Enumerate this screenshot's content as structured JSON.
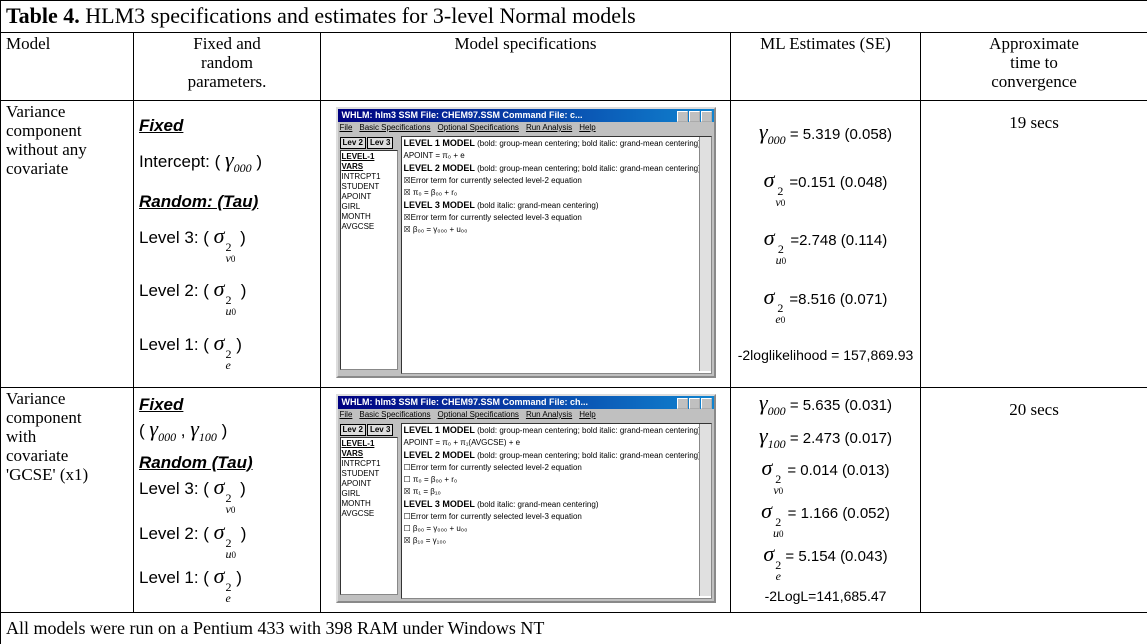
{
  "title": {
    "label": "Table 4.",
    "text": " HLM3 specifications and estimates for 3-level Normal models"
  },
  "header": {
    "model": "Model",
    "fixed": [
      "Fixed and",
      "random",
      "parameters."
    ],
    "spec": "Model specifications",
    "estimates": "ML Estimates (SE)",
    "time": [
      "Approximate",
      "time to",
      "convergence"
    ]
  },
  "rows": [
    {
      "model": [
        "Variance",
        "component",
        "without any",
        "covariate"
      ],
      "fixed": [
        [
          {
            "t": "Fixed",
            "style": "heading"
          }
        ],
        [
          {
            "t": "Intercept: ( "
          },
          {
            "sym": "γ",
            "sub": "000"
          },
          {
            "t": " )"
          }
        ],
        [
          {
            "t": "Random: (Tau)",
            "style": "heading"
          }
        ],
        [
          {
            "t": "Level 3: ( "
          },
          {
            "sym": "σ",
            "sup": "2",
            "sub": "v",
            "subsub": "0"
          },
          {
            "t": " )"
          }
        ],
        [
          {
            "t": "Level 2: ( "
          },
          {
            "sym": "σ",
            "sup": "2",
            "sub": "u",
            "subsub": "0"
          },
          {
            "t": " )"
          }
        ],
        [
          {
            "t": "Level 1: ( "
          },
          {
            "sym": "σ",
            "sup": "2",
            "sub": "e"
          },
          {
            "t": " )"
          }
        ]
      ],
      "spec": {
        "title": "WHLM: hlm3 SSM File: CHEM97.SSM   Command File: c...",
        "menu": [
          "File",
          "Basic Specifications",
          "Optional Specifications",
          "Run Analysis",
          "Help"
        ],
        "tabs": [
          "Lev 2",
          "Lev 3"
        ],
        "vars_header": "LEVEL-1 VARS",
        "vars": [
          "INTRCPT1",
          "STUDENT",
          "APOINT",
          "GIRL",
          "MONTH",
          "AVGCSE"
        ],
        "lines": [
          {
            "b": "LEVEL 1 MODEL",
            "t": " (bold: group-mean centering; bold italic: grand-mean centering)"
          },
          {
            "t": "APOINT = π₀ + e"
          },
          {
            "b": "LEVEL 2 MODEL",
            "t": " (bold: group-mean centering; bold italic: grand-mean centering)"
          },
          {
            "t": "☒Error term for currently selected level-2 equation"
          },
          {
            "t": "☒ π₀ = β₀₀ + r₀"
          },
          {
            "b": "LEVEL 3 MODEL",
            "t": " (bold italic: grand-mean centering)"
          },
          {
            "t": "☒Error term for currently selected level-3 equation"
          },
          {
            "t": "☒ β₀₀ = γ₀₀₀ + u₀₀"
          }
        ]
      },
      "estimates": [
        [
          {
            "sym": "γ",
            "sub": "000"
          },
          {
            "t": " = 5.319 (0.058)"
          }
        ],
        [
          {
            "sym": "σ",
            "sup": "2",
            "sub": "v",
            "subsub": "0"
          },
          {
            "t": " =0.151 (0.048)"
          }
        ],
        [
          {
            "sym": "σ",
            "sup": "2",
            "sub": "u",
            "subsub": "0"
          },
          {
            "t": " =2.748 (0.114)"
          }
        ],
        [
          {
            "sym": "σ",
            "sup": "2",
            "sub": "e",
            "subsub": "0"
          },
          {
            "t": " =8.516 (0.071)"
          }
        ],
        [
          {
            "t": "-2loglikelihood = 157,869.93",
            "style": "small"
          }
        ]
      ],
      "time": "19 secs"
    },
    {
      "model": [
        "Variance",
        "component",
        "with",
        "covariate",
        "'GCSE' (x1)"
      ],
      "fixed": [
        [
          {
            "t": "Fixed",
            "style": "heading"
          }
        ],
        [
          {
            "t": "( "
          },
          {
            "sym": "γ",
            "sub": "000"
          },
          {
            "t": " , "
          },
          {
            "sym": "γ",
            "sub": "100"
          },
          {
            "t": " )"
          }
        ],
        [
          {
            "t": "Random (Tau)",
            "style": "heading"
          }
        ],
        [
          {
            "t": "Level 3: ( "
          },
          {
            "sym": "σ",
            "sup": "2",
            "sub": "v",
            "subsub": "0"
          },
          {
            "t": " )"
          }
        ],
        [
          {
            "t": "Level 2: ( "
          },
          {
            "sym": "σ",
            "sup": "2",
            "sub": "u",
            "subsub": "0"
          },
          {
            "t": " )"
          }
        ],
        [
          {
            "t": "Level 1: ( "
          },
          {
            "sym": "σ",
            "sup": "2",
            "sub": "e"
          },
          {
            "t": " )"
          }
        ]
      ],
      "spec": {
        "title": "WHLM: hlm3 SSM File: CHEM97.SSM   Command File: ch...",
        "menu": [
          "File",
          "Basic Specifications",
          "Optional Specifications",
          "Run Analysis",
          "Help"
        ],
        "tabs": [
          "Lev 2",
          "Lev 3"
        ],
        "vars_header": "LEVEL-1 VARS",
        "vars": [
          "INTRCPT1",
          "STUDENT",
          "APOINT",
          "GIRL",
          "MONTH",
          "AVGCSE"
        ],
        "lines": [
          {
            "b": "LEVEL 1 MODEL",
            "t": " (bold: group-mean centering; bold italic: grand-mean centering)"
          },
          {
            "t": "APOINT = π₀ + π₁(AVGCSE) + e"
          },
          {
            "b": "LEVEL 2 MODEL",
            "t": " (bold: group-mean centering; bold italic: grand-mean centering)"
          },
          {
            "t": "☐Error term for currently selected level-2 equation"
          },
          {
            "t": "☐ π₀ = β₀₀ + r₀"
          },
          {
            "t": "☒ π₁ = β₁₀"
          },
          {
            "b": "LEVEL 3 MODEL",
            "t": " (bold italic: grand-mean centering)"
          },
          {
            "t": "☐Error term for currently selected level-3 equation"
          },
          {
            "t": "☐ β₀₀ = γ₀₀₀ + u₀₀"
          },
          {
            "t": "☒ β₁₀ = γ₁₀₀"
          }
        ]
      },
      "estimates": [
        [
          {
            "sym": "γ",
            "sub": "000"
          },
          {
            "t": " = 5.635 (0.031)"
          }
        ],
        [
          {
            "sym": "γ",
            "sub": "100"
          },
          {
            "t": " = 2.473 (0.017)"
          }
        ],
        [
          {
            "sym": "σ",
            "sup": "2",
            "sub": "v",
            "subsub": "0"
          },
          {
            "t": " = 0.014 (0.013)"
          }
        ],
        [
          {
            "sym": "σ",
            "sup": "2",
            "sub": "u",
            "subsub": "0"
          },
          {
            "t": " = 1.166 (0.052)"
          }
        ],
        [
          {
            "sym": "σ",
            "sup": "2",
            "sub": "e"
          },
          {
            "t": " = 5.154 (0.043)"
          }
        ],
        [
          {
            "t": "-2LogL=141,685.47",
            "style": "small"
          }
        ]
      ],
      "time": "20 secs"
    }
  ],
  "footer": "All models were run on a  Pentium 433 with 398 RAM under Windows NT"
}
